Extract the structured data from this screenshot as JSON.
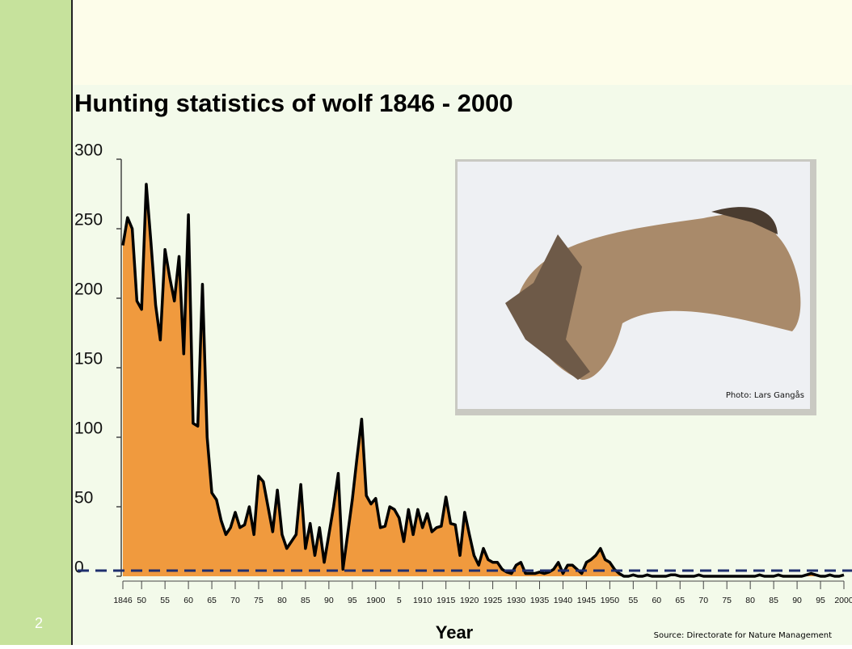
{
  "slide_number": "2",
  "chart_data": {
    "type": "area",
    "title": "Hunting statistics of wolf 1846 - 2000",
    "x_label": "Year",
    "source": "Source: Directorate for Nature Management",
    "photo_credit": "Photo: Lars Gangås",
    "color": "#f09a3e",
    "line_color": "#000000",
    "x": [
      1846,
      1847,
      1848,
      1849,
      1850,
      1851,
      1852,
      1853,
      1854,
      1855,
      1856,
      1857,
      1858,
      1859,
      1860,
      1861,
      1862,
      1863,
      1864,
      1865,
      1866,
      1867,
      1868,
      1869,
      1870,
      1871,
      1872,
      1873,
      1874,
      1875,
      1876,
      1877,
      1878,
      1879,
      1880,
      1881,
      1882,
      1883,
      1884,
      1885,
      1886,
      1887,
      1888,
      1889,
      1890,
      1891,
      1892,
      1893,
      1894,
      1895,
      1896,
      1897,
      1898,
      1899,
      1900,
      1901,
      1902,
      1903,
      1904,
      1905,
      1906,
      1907,
      1908,
      1909,
      1910,
      1911,
      1912,
      1913,
      1914,
      1915,
      1916,
      1917,
      1918,
      1919,
      1920,
      1921,
      1922,
      1923,
      1924,
      1925,
      1926,
      1927,
      1928,
      1929,
      1930,
      1931,
      1932,
      1933,
      1934,
      1935,
      1936,
      1937,
      1938,
      1939,
      1940,
      1941,
      1942,
      1943,
      1944,
      1945,
      1946,
      1947,
      1948,
      1949,
      1950,
      1951,
      1952,
      1953,
      1954,
      1955,
      1956,
      1957,
      1958,
      1959,
      1960,
      1961,
      1962,
      1963,
      1964,
      1965,
      1966,
      1967,
      1968,
      1969,
      1970,
      1971,
      1972,
      1973,
      1974,
      1975,
      1976,
      1977,
      1978,
      1979,
      1980,
      1981,
      1982,
      1983,
      1984,
      1985,
      1986,
      1987,
      1988,
      1989,
      1990,
      1991,
      1992,
      1993,
      1994,
      1995,
      1996,
      1997,
      1998,
      1999,
      2000
    ],
    "values": [
      238,
      258,
      250,
      198,
      192,
      282,
      240,
      195,
      170,
      235,
      215,
      198,
      230,
      160,
      260,
      110,
      108,
      210,
      100,
      60,
      55,
      40,
      30,
      35,
      46,
      35,
      37,
      50,
      30,
      72,
      68,
      50,
      32,
      62,
      30,
      20,
      25,
      30,
      66,
      20,
      38,
      15,
      35,
      10,
      30,
      50,
      74,
      5,
      30,
      55,
      85,
      113,
      58,
      52,
      56,
      35,
      36,
      50,
      48,
      42,
      25,
      48,
      30,
      48,
      35,
      45,
      32,
      35,
      36,
      57,
      38,
      37,
      15,
      46,
      30,
      15,
      8,
      20,
      12,
      10,
      10,
      5,
      3,
      2,
      8,
      10,
      2,
      2,
      2,
      3,
      2,
      3,
      5,
      10,
      2,
      8,
      8,
      5,
      2,
      10,
      12,
      15,
      20,
      12,
      10,
      5,
      2,
      0,
      0,
      1,
      0,
      0,
      1,
      0,
      0,
      0,
      0,
      1,
      1,
      0,
      0,
      0,
      0,
      1,
      0,
      0,
      0,
      0,
      0,
      0,
      0,
      0,
      0,
      0,
      0,
      0,
      1,
      0,
      0,
      0,
      1,
      0,
      0,
      0,
      0,
      0,
      1,
      2,
      1,
      0,
      0,
      1,
      0,
      0,
      1
    ],
    "xlim": [
      1846,
      2000
    ],
    "ylim": [
      0,
      300
    ],
    "yticks": [
      0,
      50,
      100,
      150,
      200,
      250,
      300
    ],
    "xticks": [
      {
        "value": 1846,
        "label": "1846"
      },
      {
        "value": 1850,
        "label": "50"
      },
      {
        "value": 1855,
        "label": "55"
      },
      {
        "value": 1860,
        "label": "60"
      },
      {
        "value": 1865,
        "label": "65"
      },
      {
        "value": 1870,
        "label": "70"
      },
      {
        "value": 1875,
        "label": "75"
      },
      {
        "value": 1880,
        "label": "80"
      },
      {
        "value": 1885,
        "label": "85"
      },
      {
        "value": 1890,
        "label": "90"
      },
      {
        "value": 1895,
        "label": "95"
      },
      1900,
      {
        "value": 1905,
        "label": "5"
      },
      1910,
      1915,
      1920,
      1925,
      1930,
      1935,
      1940,
      1945,
      1950,
      {
        "value": 1955,
        "label": "55"
      },
      {
        "value": 1960,
        "label": "60"
      },
      {
        "value": 1965,
        "label": "65"
      },
      {
        "value": 1970,
        "label": "70"
      },
      {
        "value": 1975,
        "label": "75"
      },
      {
        "value": 1980,
        "label": "80"
      },
      {
        "value": 1985,
        "label": "85"
      },
      {
        "value": 1990,
        "label": "90"
      },
      {
        "value": 1995,
        "label": "95"
      },
      2000
    ]
  }
}
